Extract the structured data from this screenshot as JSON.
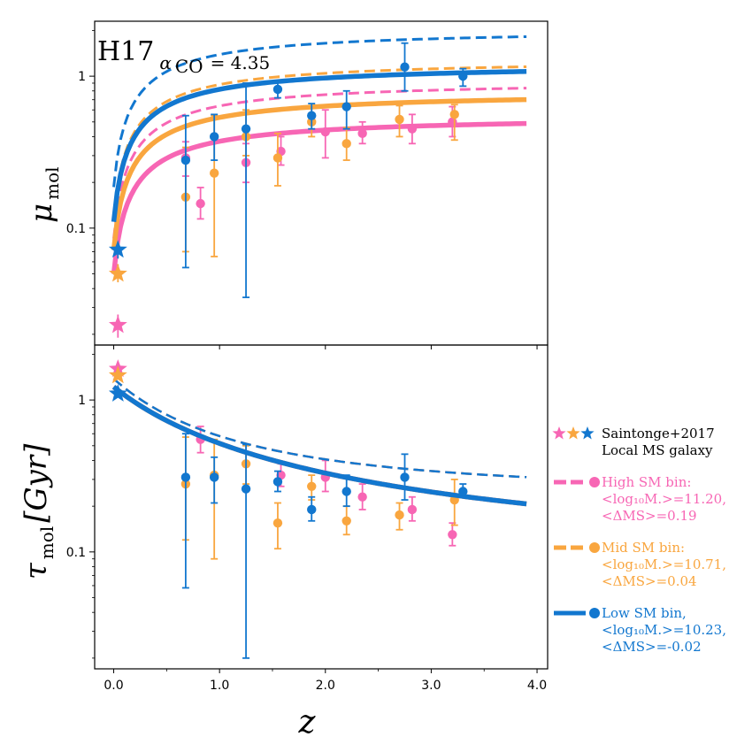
{
  "chart_data": {
    "type": "scatter",
    "annotation": {
      "main": "H17",
      "sub_symbol": "α",
      "sub_sub": "CO",
      "sub_value": "= 4.35"
    },
    "xlabel": "z",
    "xlim": [
      -0.18,
      4.1
    ],
    "xticks": [
      "0.0",
      "1.0",
      "2.0",
      "3.0",
      "4.0"
    ],
    "xtick_values": [
      0,
      1,
      2,
      3,
      4
    ],
    "yscale": "log",
    "panels": [
      {
        "id": "mu",
        "ylabel_main": "μ",
        "ylabel_sub": "mol",
        "ylim": [
          0.017,
          2.3
        ],
        "yticks": [
          "0.1",
          "1"
        ],
        "ytick_values": [
          0.1,
          1
        ]
      },
      {
        "id": "tau",
        "ylabel_main": "τ",
        "ylabel_sub": "mol",
        "ylabel_unit": "[Gyr]",
        "ylim": [
          0.017,
          2.3
        ],
        "yticks": [
          "0.1",
          "1"
        ],
        "ytick_values": [
          0.1,
          1
        ]
      }
    ],
    "series": [
      {
        "key": "high",
        "color": "#f766b4",
        "mu_solid": {
          "a": 0.55,
          "b": 0.5
        },
        "mu_dashed": {
          "a": 0.94,
          "b": 0.5
        },
        "tau_solid": {
          "a": 1.14,
          "p": 1.38,
          "c": 0.08
        },
        "tau_dashed": {
          "a": 1.14,
          "p": 1.75,
          "c": 0.24
        },
        "star": {
          "x": 0.04,
          "y": 0.023,
          "err": [
            0.019,
            0.027
          ]
        },
        "mu_points": [
          [
            0.68,
            0.29,
            0.22,
            0.37
          ],
          [
            0.82,
            0.145,
            0.115,
            0.185
          ],
          [
            1.25,
            0.27,
            0.2,
            0.36
          ],
          [
            1.58,
            0.32,
            0.26,
            0.4
          ],
          [
            2.0,
            0.43,
            0.29,
            0.6
          ],
          [
            2.35,
            0.42,
            0.36,
            0.5
          ],
          [
            2.82,
            0.45,
            0.36,
            0.56
          ],
          [
            3.2,
            0.5,
            0.4,
            0.63
          ]
        ],
        "tau_points": [
          [
            0.82,
            0.55,
            0.45,
            0.67
          ],
          [
            1.58,
            0.32,
            0.27,
            0.38
          ],
          [
            2.0,
            0.31,
            0.25,
            0.4
          ],
          [
            2.35,
            0.23,
            0.19,
            0.28
          ],
          [
            2.82,
            0.19,
            0.16,
            0.23
          ],
          [
            3.2,
            0.13,
            0.11,
            0.155
          ]
        ]
      },
      {
        "key": "mid",
        "color": "#f9a63f",
        "mu_solid": {
          "a": 0.79,
          "b": 0.5
        },
        "mu_dashed": {
          "a": 1.3,
          "b": 0.5
        },
        "tau_solid": {
          "a": 1.14,
          "p": 1.38,
          "c": 0.08
        },
        "tau_dashed": {
          "a": 1.14,
          "p": 1.75,
          "c": 0.24
        },
        "star": {
          "x": 0.04,
          "y": 0.05,
          "err": [
            0.044,
            0.058
          ]
        },
        "mu_points": [
          [
            0.68,
            0.16,
            0.07,
            0.34
          ],
          [
            0.95,
            0.23,
            0.065,
            0.55
          ],
          [
            1.25,
            0.4,
            0.3,
            0.6
          ],
          [
            1.55,
            0.29,
            0.19,
            0.42
          ],
          [
            1.87,
            0.5,
            0.4,
            0.63
          ],
          [
            2.2,
            0.36,
            0.28,
            0.46
          ],
          [
            2.7,
            0.52,
            0.4,
            0.64
          ],
          [
            3.22,
            0.56,
            0.38,
            0.65
          ]
        ],
        "tau_points": [
          [
            0.68,
            0.28,
            0.12,
            0.57
          ],
          [
            0.95,
            0.32,
            0.09,
            0.55
          ],
          [
            1.25,
            0.38,
            0.28,
            0.5
          ],
          [
            1.55,
            0.155,
            0.105,
            0.21
          ],
          [
            1.87,
            0.27,
            0.22,
            0.32
          ],
          [
            2.2,
            0.16,
            0.13,
            0.2
          ],
          [
            2.7,
            0.175,
            0.14,
            0.21
          ],
          [
            3.22,
            0.22,
            0.15,
            0.3
          ]
        ]
      },
      {
        "key": "low",
        "color": "#1277cf",
        "mu_solid": {
          "a": 1.21,
          "b": 0.5
        },
        "mu_dashed": {
          "a": 2.05,
          "b": 0.5
        },
        "tau_solid": {
          "a": 1.14,
          "p": 1.38,
          "c": 0.08
        },
        "tau_dashed": {
          "a": 1.14,
          "p": 1.75,
          "c": 0.24
        },
        "star": {
          "x": 0.04,
          "y": 0.072,
          "err": [
            0.063,
            0.08
          ]
        },
        "mu_points": [
          [
            0.68,
            0.28,
            0.055,
            0.55
          ],
          [
            0.95,
            0.4,
            0.28,
            0.56
          ],
          [
            1.25,
            0.45,
            0.035,
            0.9
          ],
          [
            1.55,
            0.82,
            0.72,
            0.93
          ],
          [
            1.87,
            0.55,
            0.45,
            0.66
          ],
          [
            2.2,
            0.63,
            0.45,
            0.8
          ],
          [
            2.75,
            1.15,
            0.8,
            1.65
          ],
          [
            3.3,
            1.0,
            0.86,
            1.12
          ]
        ],
        "tau_points": [
          [
            0.68,
            0.31,
            0.058,
            0.6
          ],
          [
            0.95,
            0.31,
            0.21,
            0.42
          ],
          [
            1.25,
            0.26,
            0.02,
            0.51
          ],
          [
            1.55,
            0.29,
            0.25,
            0.34
          ],
          [
            1.87,
            0.19,
            0.16,
            0.23
          ],
          [
            2.2,
            0.25,
            0.2,
            0.32
          ],
          [
            2.75,
            0.31,
            0.22,
            0.44
          ],
          [
            3.3,
            0.25,
            0.23,
            0.28
          ]
        ]
      }
    ],
    "tau_stars": [
      {
        "color": "#f766b4",
        "y": 1.6
      },
      {
        "color": "#f9a63f",
        "y": 1.45
      },
      {
        "color": "#1277cf",
        "y": 1.1
      }
    ],
    "legend": {
      "placement": "right",
      "entries": [
        {
          "kind": "stars",
          "colors": [
            "#f766b4",
            "#f9a63f",
            "#1277cf"
          ],
          "lines": [
            "Saintonge+2017",
            "Local MS galaxy"
          ],
          "color": "#000000"
        },
        {
          "kind": "line",
          "style": "dashed",
          "color": "#f766b4",
          "lines": [
            "High SM bin:",
            "<log₁₀M.>=11.20,",
            "<ΔMS>=0.19"
          ]
        },
        {
          "kind": "line",
          "style": "dashed",
          "color": "#f9a63f",
          "lines": [
            "Mid SM bin:",
            "<log₁₀M.>=10.71,",
            "<ΔMS>=0.04"
          ]
        },
        {
          "kind": "line",
          "style": "solid",
          "color": "#1277cf",
          "lines": [
            "Low SM bin,",
            "<log₁₀M.>=10.23,",
            "<ΔMS>=-0.02"
          ]
        }
      ]
    }
  }
}
